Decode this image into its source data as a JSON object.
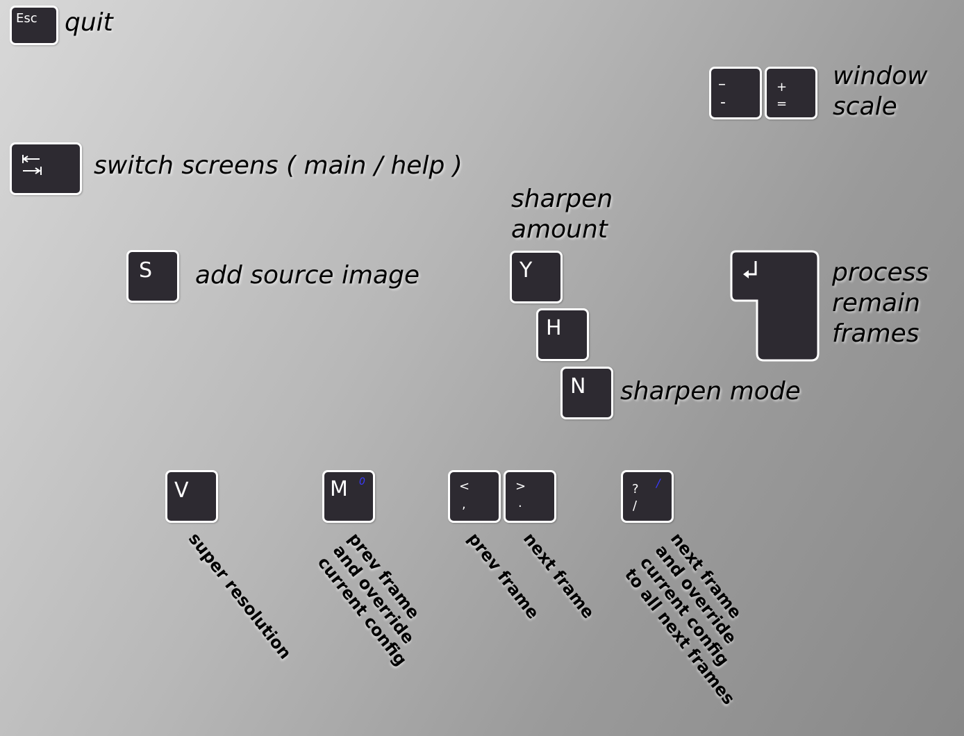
{
  "keys": {
    "esc": {
      "cap": "Esc",
      "label": "quit"
    },
    "minus": {
      "top": "–",
      "bottom": "-"
    },
    "plus": {
      "top": "+",
      "bottom": "="
    },
    "window_scale": [
      "window",
      "scale"
    ],
    "tab": {
      "label": "switch screens ( main / help )"
    },
    "s": {
      "cap": "S",
      "label": "add source image"
    },
    "sharpen_amount": [
      "sharpen",
      "amount"
    ],
    "y": {
      "cap": "Y"
    },
    "h": {
      "cap": "H"
    },
    "n": {
      "cap": "N",
      "label": "sharpen mode"
    },
    "enter": {
      "label": [
        "process",
        "remain",
        "frames"
      ]
    },
    "v": {
      "cap": "V",
      "label": [
        "super resolution"
      ]
    },
    "m": {
      "cap": "M",
      "alt": "0",
      "label": [
        "prev frame",
        "and override",
        "current config"
      ]
    },
    "comma": {
      "top": "<",
      "bottom": ",",
      "label": [
        "prev frame"
      ]
    },
    "period": {
      "top": ">",
      "bottom": ".",
      "label": [
        "next frame"
      ]
    },
    "slash": {
      "top": "?",
      "bottom": "/",
      "alt": "/",
      "label": [
        "next frame",
        "and override",
        "current config",
        "to all next frames"
      ]
    }
  },
  "colors": {
    "key_fill": "#2d2a31",
    "key_border": "#ffffff",
    "alt_legend": "#3a3aff"
  },
  "icons": {
    "tab": "tab-icon",
    "enter": "enter-icon"
  }
}
